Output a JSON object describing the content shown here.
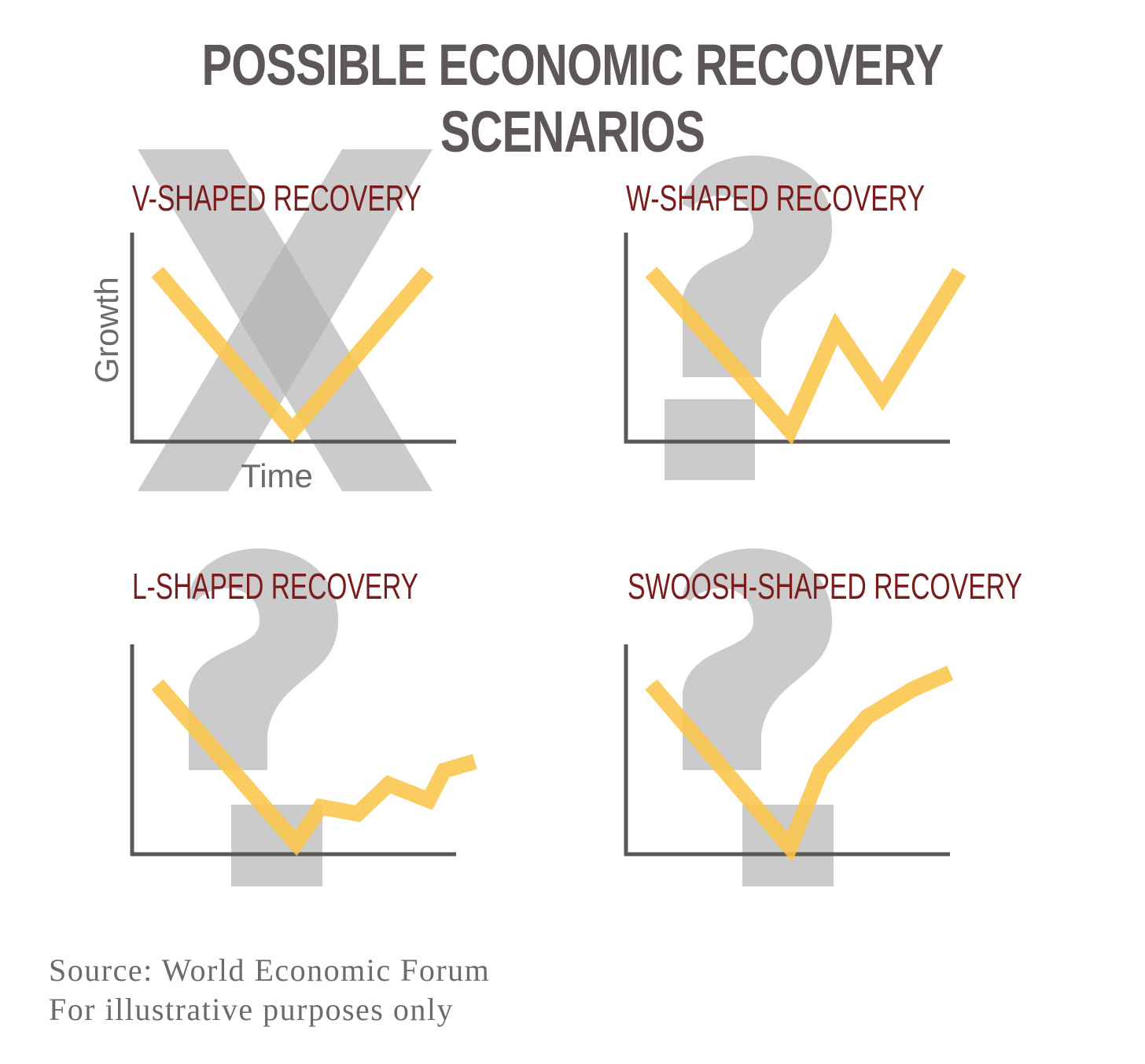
{
  "title": "POSSIBLE ECONOMIC RECOVERY SCENARIOS",
  "colors": {
    "title": "#5e5757",
    "panel_title": "#7a1c1c",
    "line": "#fbc54a",
    "axis": "#5e5757",
    "overlay": "#b3b3b3",
    "axis_label": "#6b6b6b"
  },
  "axis_labels": {
    "y": "Growth",
    "x": "Time"
  },
  "panels": [
    {
      "title": "V-SHAPED RECOVERY",
      "overlay_icon": "x-mark-icon"
    },
    {
      "title": "W-SHAPED RECOVERY",
      "overlay_icon": "question-mark-icon"
    },
    {
      "title": "L-SHAPED RECOVERY",
      "overlay_icon": "question-mark-icon"
    },
    {
      "title": "SWOOSH-SHAPED RECOVERY",
      "overlay_icon": "question-mark-icon"
    }
  ],
  "footer": {
    "source": "Source: World Economic Forum",
    "note": "For illustrative purposes only"
  },
  "chart_data": [
    {
      "type": "line",
      "title": "V-SHAPED RECOVERY",
      "xlabel": "Time",
      "ylabel": "Growth",
      "grid": false,
      "x": [
        0,
        5,
        10
      ],
      "y": [
        8,
        1,
        8
      ]
    },
    {
      "type": "line",
      "title": "W-SHAPED RECOVERY",
      "xlabel": "",
      "ylabel": "",
      "grid": false,
      "x": [
        0,
        4.5,
        6,
        7.5,
        10
      ],
      "y": [
        8,
        1,
        5.5,
        2.5,
        8
      ]
    },
    {
      "type": "line",
      "title": "L-SHAPED RECOVERY",
      "xlabel": "",
      "ylabel": "",
      "grid": false,
      "x": [
        0,
        4.5,
        5.3,
        6.5,
        7.5,
        8.8,
        9.3,
        10.3
      ],
      "y": [
        8,
        1,
        2.6,
        2.3,
        3.6,
        2.9,
        4.2,
        4.6
      ]
    },
    {
      "type": "line",
      "title": "SWOOSH-SHAPED RECOVERY",
      "xlabel": "",
      "ylabel": "",
      "grid": false,
      "x": [
        0,
        4.5,
        5.5,
        7,
        8.5,
        9.7
      ],
      "y": [
        8,
        1,
        4.3,
        6.6,
        7.8,
        8.5
      ]
    }
  ]
}
